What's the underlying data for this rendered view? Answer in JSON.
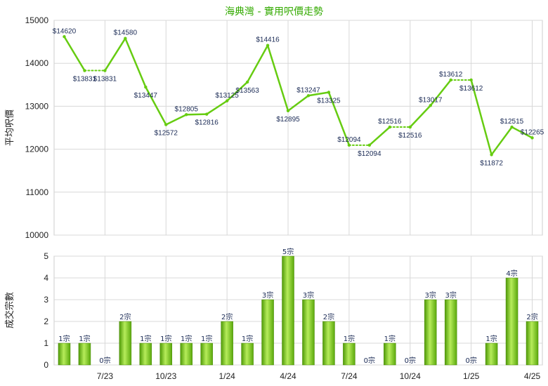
{
  "chart_data": [
    {
      "type": "line",
      "title": "海典灣 - 實用呎價走勢",
      "ylabel": "平均呎價",
      "ylim": [
        10000,
        15000
      ],
      "yticks": [
        10000,
        11000,
        12000,
        13000,
        14000,
        15000
      ],
      "series": [
        {
          "values": [
            14620,
            13831,
            13831,
            14580,
            13447,
            12572,
            12805,
            12816,
            13125,
            13563,
            14416,
            12895,
            13247,
            13325,
            12094,
            12094,
            12516,
            12516,
            13017,
            13612,
            13612,
            11872,
            12515,
            12265
          ],
          "labels": [
            "$14620",
            "$13831",
            "$13831",
            "$14580",
            "$13447",
            "$12572",
            "$12805",
            "$12816",
            "$13125",
            "$13563",
            "$14416",
            "$12895",
            "$13247",
            "$13325",
            "$12094",
            "$12094",
            "$12516",
            "$12516",
            "$13017",
            "$13612",
            "$13612",
            "$11872",
            "$12515",
            "$12265"
          ],
          "color": "#66cc11"
        }
      ],
      "grid": true
    },
    {
      "type": "bar",
      "ylabel": "成交宗數",
      "ylim": [
        0,
        5
      ],
      "yticks": [
        0,
        1,
        2,
        3,
        4,
        5
      ],
      "categories": [
        "7/23",
        "10/23",
        "1/24",
        "4/24",
        "7/24",
        "10/24",
        "1/25",
        "4/25"
      ],
      "values": [
        1,
        1,
        0,
        2,
        1,
        1,
        1,
        1,
        2,
        1,
        3,
        5,
        3,
        2,
        1,
        0,
        1,
        0,
        3,
        3,
        0,
        1,
        4,
        2
      ],
      "labels": [
        "1宗",
        "1宗",
        "0宗",
        "2宗",
        "1宗",
        "1宗",
        "1宗",
        "1宗",
        "2宗",
        "1宗",
        "3宗",
        "5宗",
        "3宗",
        "2宗",
        "1宗",
        "0宗",
        "1宗",
        "0宗",
        "3宗",
        "3宗",
        "0宗",
        "1宗",
        "4宗",
        "2宗"
      ],
      "color": "#66bb11",
      "grid": true
    }
  ]
}
